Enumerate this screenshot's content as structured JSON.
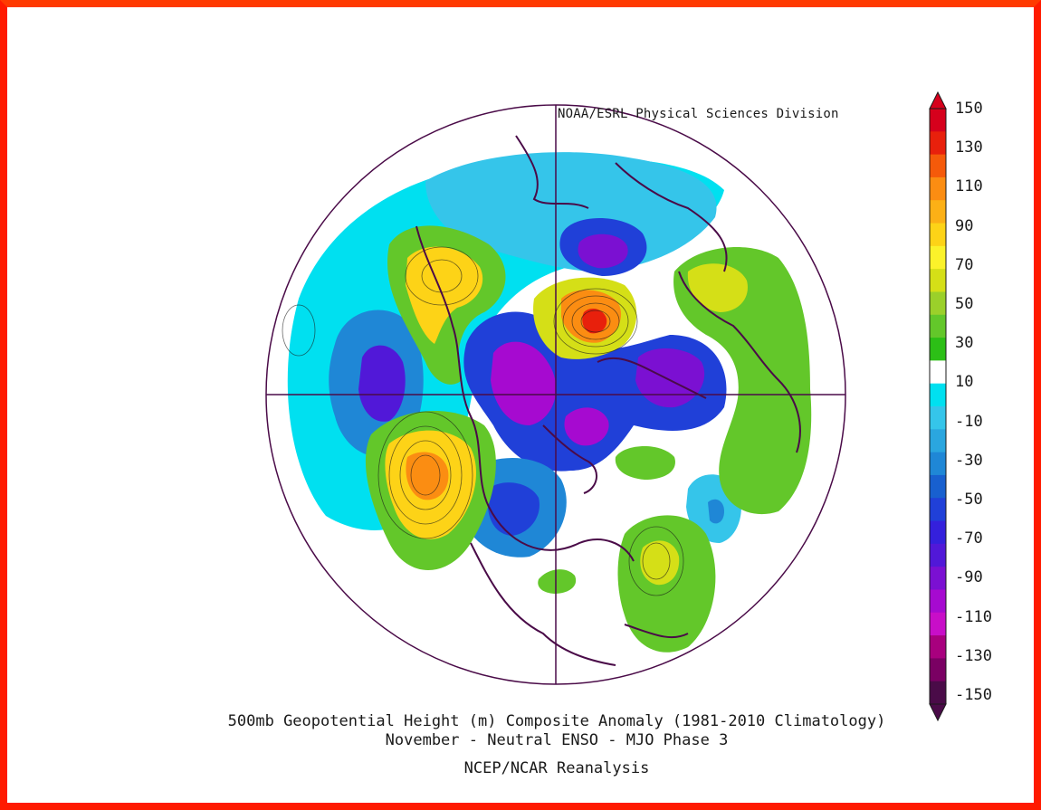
{
  "header": {
    "credit": "NOAA/ESRL Physical Sciences Division"
  },
  "title": {
    "line1": "500mb Geopotential Height (m) Composite Anomaly (1981-2010 Climatology)",
    "line2": "November - Neutral ENSO - MJO Phase 3",
    "source": "NCEP/NCAR Reanalysis"
  },
  "colorbar": {
    "labels": [
      "150",
      "130",
      "110",
      "90",
      "70",
      "50",
      "30",
      "10",
      "-10",
      "-30",
      "-50",
      "-70",
      "-90",
      "-110",
      "-130",
      "-150"
    ],
    "colors": [
      "#d6001c",
      "#e8200c",
      "#f55a0a",
      "#fb8d12",
      "#fcb016",
      "#fdd317",
      "#fbf22a",
      "#d5df17",
      "#9bd02a",
      "#63c72a",
      "#2cbf16",
      "#ffffff",
      "#00e0f0",
      "#35c5ea",
      "#2aa6df",
      "#1f87d6",
      "#1860cf",
      "#2040d8",
      "#3420dc",
      "#5118d8",
      "#7b10d2",
      "#a60ad0",
      "#c80ec8",
      "#a8007e",
      "#7a0063",
      "#4a0b48"
    ]
  },
  "map": {
    "projection": "north polar stereographic",
    "colors": {
      "strong_pos": "#e8200c",
      "orange": "#fb8d12",
      "yellow": "#fdd317",
      "lime": "#d5df17",
      "green": "#63c72a",
      "cyan": "#00e0f0",
      "lightblue": "#35c5ea",
      "blue": "#1f87d6",
      "deepblue": "#2040d8",
      "purple": "#7b10d2",
      "magenta": "#c80ec8",
      "coast": "#4a0b48",
      "border": "#1a1a1a"
    }
  }
}
